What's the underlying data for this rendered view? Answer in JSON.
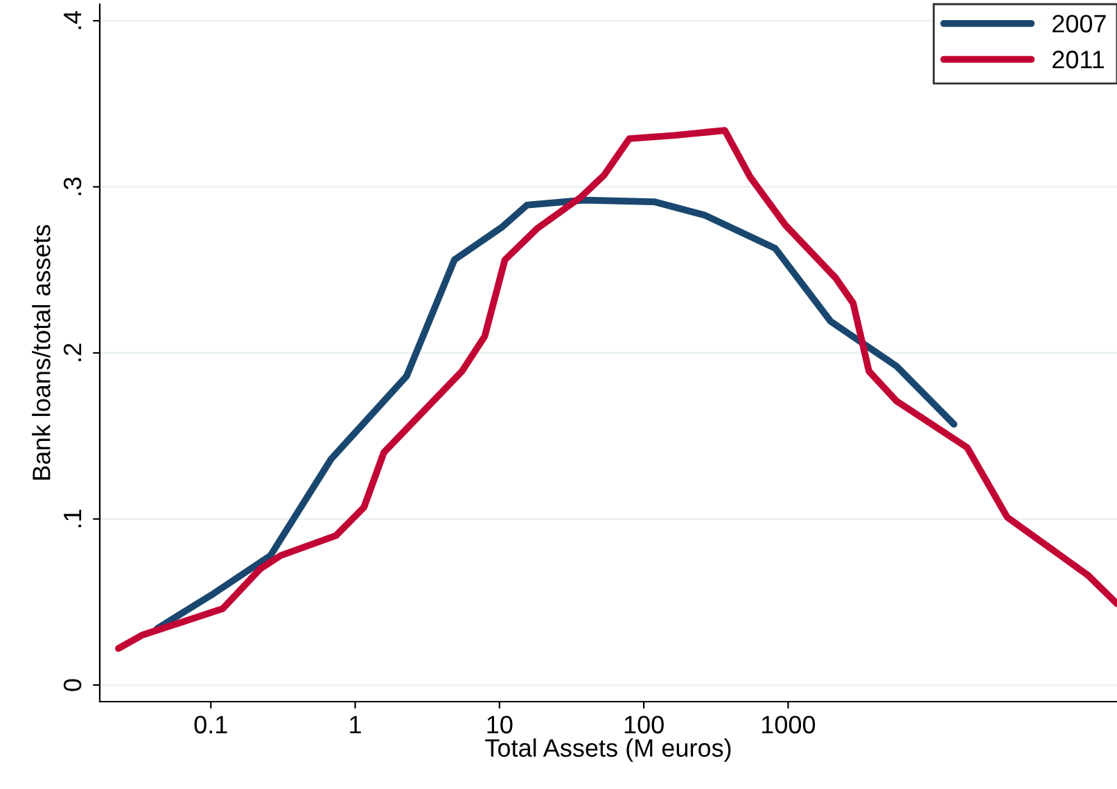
{
  "chart_data": {
    "type": "line",
    "xlabel": "Total Assets (M euros)",
    "ylabel": "Bank loans/total assets",
    "log": "x",
    "xlim": [
      0.017,
      190000
    ],
    "xticks": [
      0.1,
      1,
      10,
      100,
      1000
    ],
    "ylim": [
      -0.01,
      0.41
    ],
    "yticks": [
      0,
      {
        "value": 0.1,
        "label": ".1"
      },
      {
        "value": 0.2,
        "label": ".2"
      },
      {
        "value": 0.3,
        "label": ".3"
      },
      {
        "value": 0.4,
        "label": ".4"
      }
    ],
    "grid": "y",
    "legend": "top right",
    "marker": "none",
    "line_style": "solid",
    "series": [
      {
        "name": "2007",
        "color": "#1a476f",
        "x": [
          0.0425,
          0.1,
          0.259,
          0.68,
          2.27,
          4.87,
          10.5,
          15.5,
          38.5,
          118,
          263,
          813,
          1970,
          5640,
          14100
        ],
        "values": [
          0.034,
          0.054,
          0.078,
          0.136,
          0.186,
          0.256,
          0.276,
          0.289,
          0.292,
          0.291,
          0.283,
          0.263,
          0.219,
          0.192,
          0.157
        ]
      },
      {
        "name": "2011",
        "color": "#c10534",
        "x": [
          0.0229,
          0.0333,
          0.121,
          0.22,
          0.305,
          0.736,
          1.15,
          1.58,
          5.5,
          7.9,
          10.9,
          18.3,
          36.9,
          53,
          79.4,
          163,
          364,
          545,
          957,
          2140,
          2820,
          3630,
          5640,
          17400,
          33000,
          120000,
          190000
        ],
        "values": [
          0.022,
          0.03,
          0.046,
          0.07,
          0.078,
          0.09,
          0.107,
          0.14,
          0.189,
          0.21,
          0.256,
          0.275,
          0.294,
          0.307,
          0.329,
          0.331,
          0.334,
          0.306,
          0.277,
          0.245,
          0.23,
          0.189,
          0.171,
          0.143,
          0.101,
          0.066,
          0.049
        ]
      }
    ]
  }
}
